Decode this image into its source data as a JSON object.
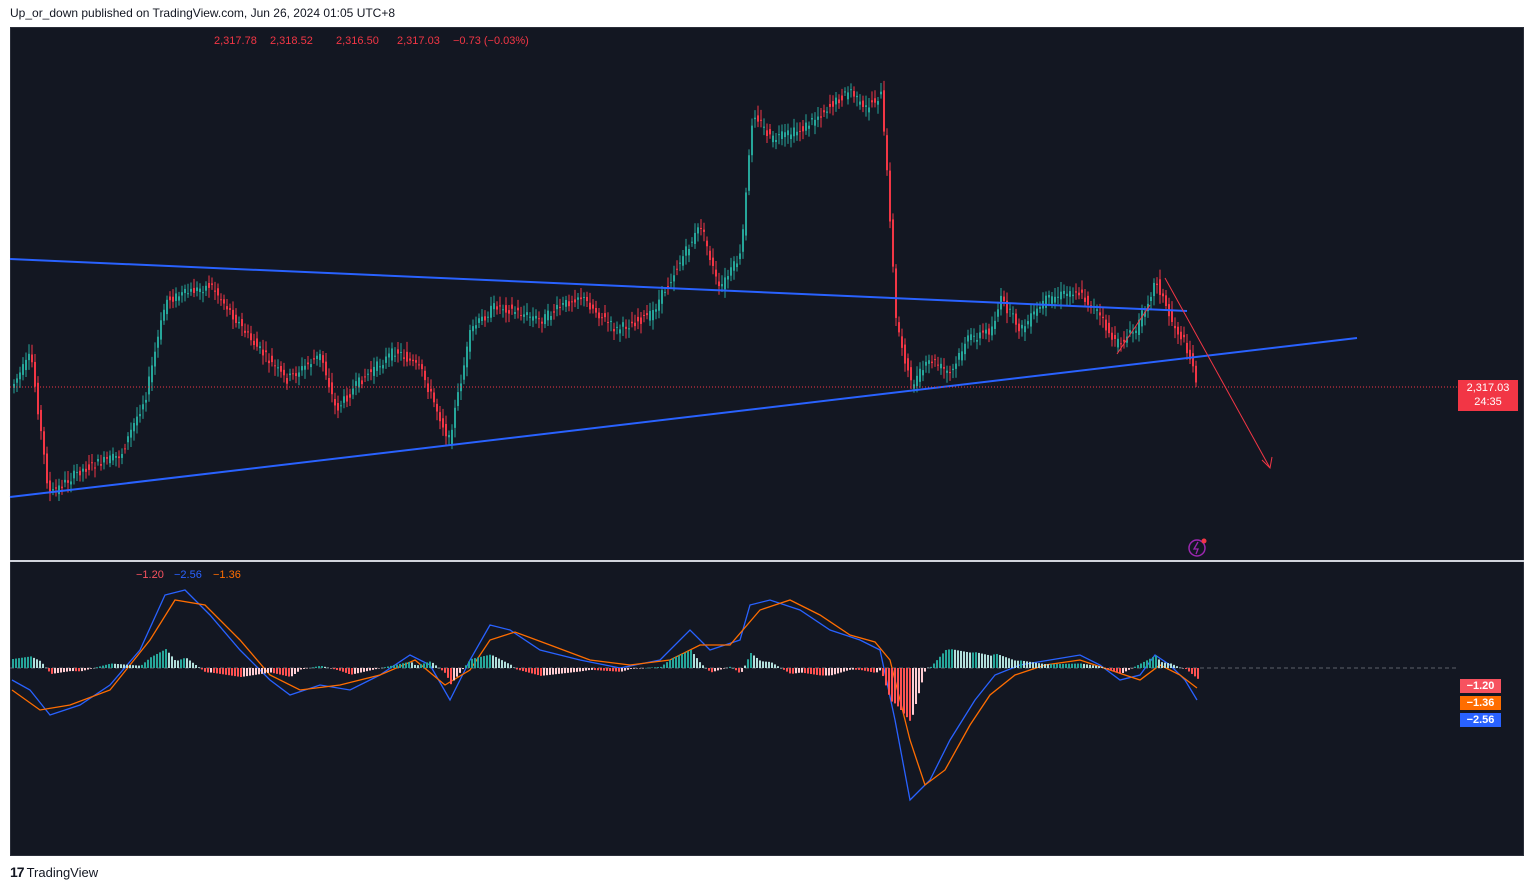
{
  "header": {
    "published": "Up_or_down published on TradingView.com, Jun 26, 2024 01:05 UTC+8"
  },
  "ohlc": {
    "open": "2,317.78",
    "high": "2,318.52",
    "low": "2,316.50",
    "close": "2,317.03",
    "change": "−0.73 (−0.03%)"
  },
  "price_tag": {
    "price": "2,317.03",
    "countdown": "24:35"
  },
  "macd": {
    "hist": "−1.20",
    "macd": "−2.56",
    "signal": "−1.36"
  },
  "footer": {
    "brand": "TradingView"
  },
  "colors": {
    "up": "#26a69a",
    "down": "#f23645",
    "trendline": "#2962ff",
    "macd_line": "#2962ff",
    "signal_line": "#ff6d00",
    "background": "#131722"
  },
  "icons": {
    "lightning": "lightning-icon",
    "logo": "tradingview-logo-icon"
  }
}
